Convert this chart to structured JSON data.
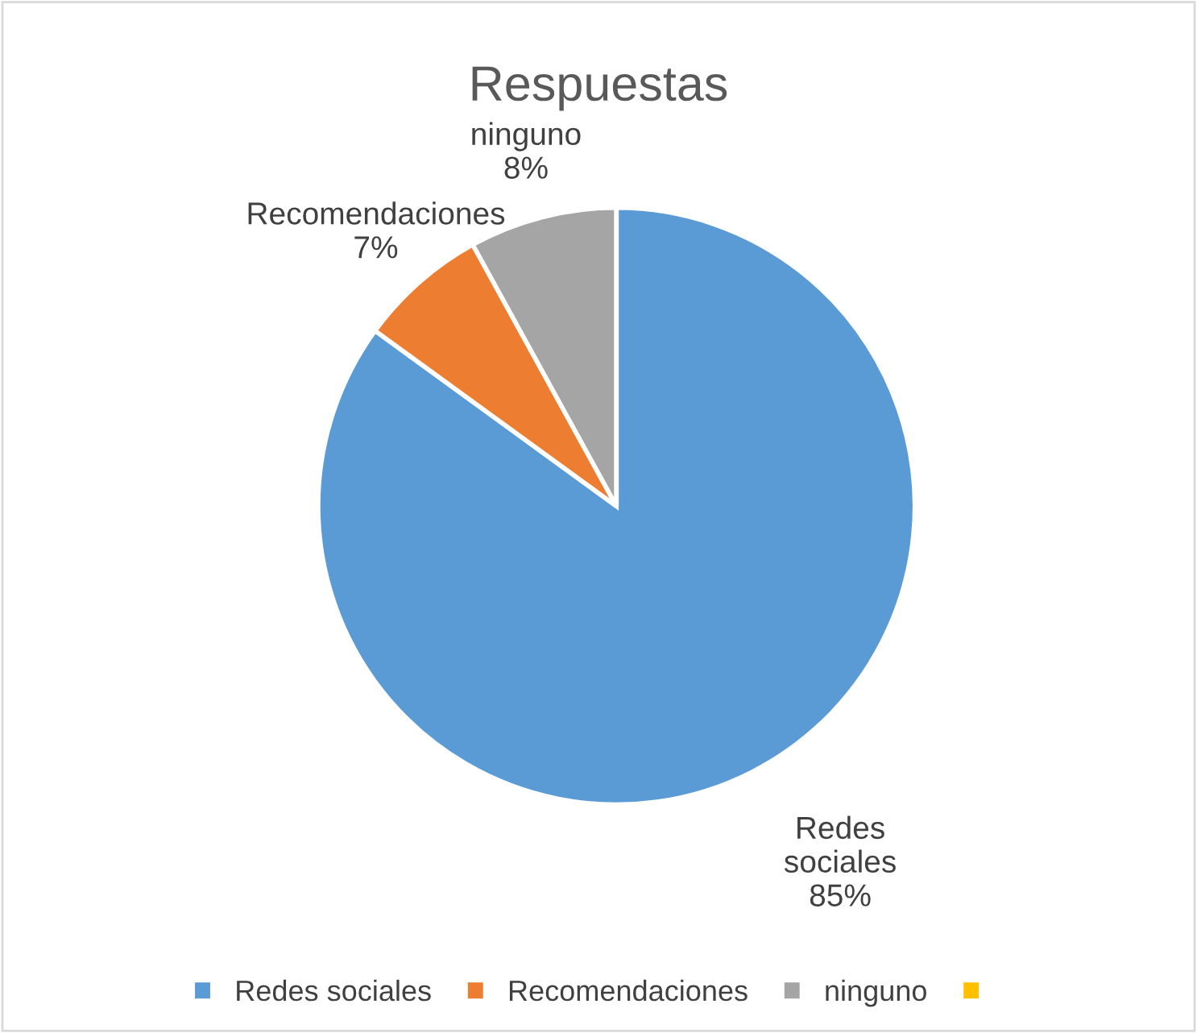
{
  "chart_data": {
    "type": "pie",
    "title": "Respuestas",
    "categories": [
      "Redes sociales",
      "Recomendaciones",
      "ninguno",
      null
    ],
    "values": [
      85,
      7,
      8,
      0
    ],
    "value_labels": [
      "85%",
      "7%",
      "8%",
      null
    ],
    "colors": [
      "#5b9bd5",
      "#ed7d31",
      "#a5a5a5",
      "#ffc000"
    ],
    "legend": "bottom"
  }
}
